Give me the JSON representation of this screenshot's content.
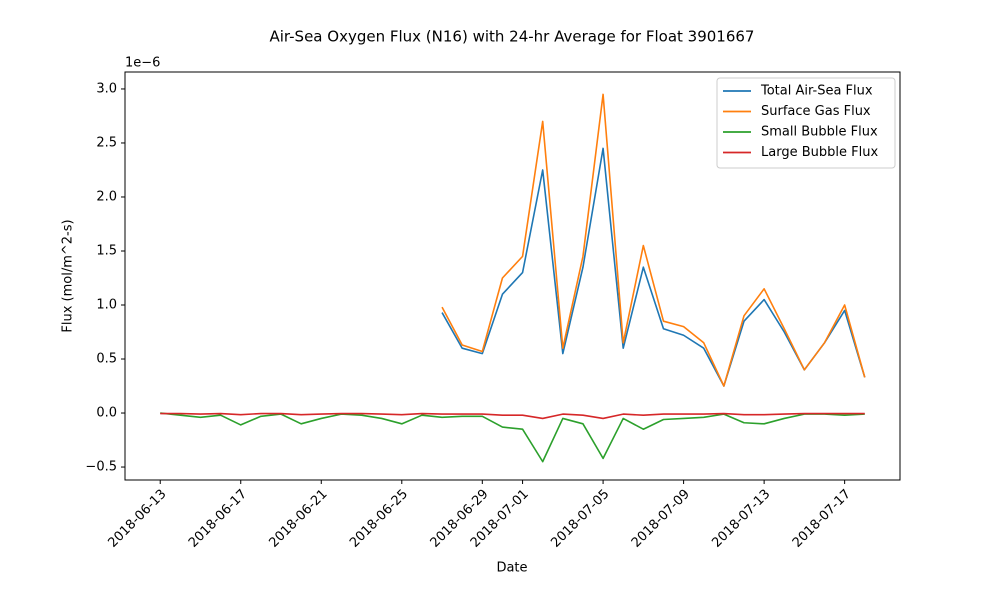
{
  "chart_data": {
    "type": "line",
    "title": "Air-Sea Oxygen Flux (N16) with 24-hr Average for Float 3901667",
    "x_label": "Date",
    "y_label": "Flux (mol/m^2-s)",
    "y_offset_label": "1e−6",
    "x": [
      "2018-06-13",
      "2018-06-14",
      "2018-06-15",
      "2018-06-16",
      "2018-06-17",
      "2018-06-18",
      "2018-06-19",
      "2018-06-20",
      "2018-06-21",
      "2018-06-22",
      "2018-06-23",
      "2018-06-24",
      "2018-06-25",
      "2018-06-26",
      "2018-06-27",
      "2018-06-28",
      "2018-06-29",
      "2018-06-30",
      "2018-07-01",
      "2018-07-02",
      "2018-07-03",
      "2018-07-04",
      "2018-07-05",
      "2018-07-06",
      "2018-07-07",
      "2018-07-08",
      "2018-07-09",
      "2018-07-10",
      "2018-07-11",
      "2018-07-12",
      "2018-07-13",
      "2018-07-14",
      "2018-07-15",
      "2018-07-16",
      "2018-07-17",
      "2018-07-18"
    ],
    "series": [
      {
        "name": "Total Air-Sea Flux",
        "color": "#1f77b4",
        "values": [
          null,
          null,
          null,
          null,
          null,
          null,
          null,
          null,
          null,
          null,
          null,
          null,
          null,
          null,
          0.93,
          0.6,
          0.55,
          1.1,
          1.3,
          2.25,
          0.55,
          1.35,
          2.45,
          0.6,
          1.35,
          0.78,
          0.72,
          0.6,
          0.25,
          0.85,
          1.05,
          0.75,
          0.4,
          0.65,
          0.95,
          0.33
        ]
      },
      {
        "name": "Surface Gas Flux",
        "color": "#ff7f0e",
        "values": [
          null,
          null,
          null,
          null,
          null,
          null,
          null,
          null,
          null,
          null,
          null,
          null,
          null,
          null,
          0.98,
          0.63,
          0.57,
          1.25,
          1.45,
          2.7,
          0.6,
          1.45,
          2.95,
          0.65,
          1.55,
          0.85,
          0.8,
          0.65,
          0.25,
          0.9,
          1.15,
          0.78,
          0.4,
          0.65,
          1.0,
          0.33
        ]
      },
      {
        "name": "Small Bubble Flux",
        "color": "#2ca02c",
        "values": [
          0,
          -0.02,
          -0.04,
          -0.02,
          -0.11,
          -0.03,
          -0.01,
          -0.1,
          -0.05,
          -0.01,
          -0.02,
          -0.05,
          -0.1,
          -0.02,
          -0.04,
          -0.03,
          -0.03,
          -0.13,
          -0.15,
          -0.45,
          -0.05,
          -0.1,
          -0.42,
          -0.05,
          -0.15,
          -0.06,
          -0.05,
          -0.04,
          -0.01,
          -0.09,
          -0.1,
          -0.05,
          -0.01,
          -0.01,
          -0.02,
          -0.01
        ]
      },
      {
        "name": "Large Bubble Flux",
        "color": "#d62728",
        "values": [
          -0.005,
          -0.005,
          -0.01,
          -0.005,
          -0.015,
          -0.005,
          -0.005,
          -0.015,
          -0.01,
          -0.005,
          -0.005,
          -0.01,
          -0.015,
          -0.005,
          -0.01,
          -0.01,
          -0.01,
          -0.02,
          -0.02,
          -0.05,
          -0.01,
          -0.02,
          -0.05,
          -0.01,
          -0.02,
          -0.01,
          -0.01,
          -0.01,
          -0.005,
          -0.015,
          -0.015,
          -0.01,
          -0.005,
          -0.005,
          -0.005,
          -0.005
        ]
      }
    ],
    "ylim": [
      -0.62,
      3.157
    ],
    "yticks": [
      {
        "value": -0.5,
        "label": "−0.5"
      },
      {
        "value": 0,
        "label": "0.0"
      },
      0.5,
      {
        "value": 1,
        "label": "1.0"
      },
      1.5,
      {
        "value": 2,
        "label": "2.0"
      },
      2.5,
      {
        "value": 3,
        "label": "3.0"
      }
    ],
    "xticks": [
      "2018-06-13",
      "2018-06-17",
      "2018-06-21",
      "2018-06-25",
      "2018-06-29",
      "2018-07-01",
      "2018-07-05",
      "2018-07-09",
      "2018-07-13",
      "2018-07-17"
    ],
    "legend": "upper right",
    "grid": false
  }
}
